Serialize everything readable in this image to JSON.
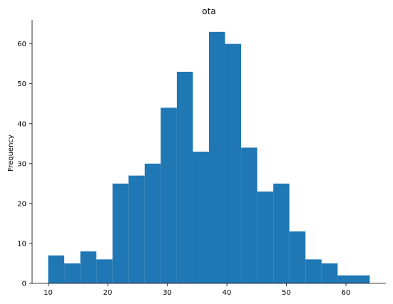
{
  "chart_data": {
    "type": "bar",
    "title": "ota",
    "xlabel": "",
    "ylabel": "Frequency",
    "bar_color": "#1f77b4",
    "bins": [
      {
        "x0": 10.0,
        "x1": 12.7,
        "count": 7
      },
      {
        "x0": 12.7,
        "x1": 15.4,
        "count": 5
      },
      {
        "x0": 15.4,
        "x1": 18.1,
        "count": 8
      },
      {
        "x0": 18.1,
        "x1": 20.8,
        "count": 6
      },
      {
        "x0": 20.8,
        "x1": 23.5,
        "count": 25
      },
      {
        "x0": 23.5,
        "x1": 26.2,
        "count": 27
      },
      {
        "x0": 26.2,
        "x1": 28.9,
        "count": 30
      },
      {
        "x0": 28.9,
        "x1": 31.6,
        "count": 44
      },
      {
        "x0": 31.6,
        "x1": 34.3,
        "count": 53
      },
      {
        "x0": 34.3,
        "x1": 37.0,
        "count": 33
      },
      {
        "x0": 37.0,
        "x1": 39.7,
        "count": 63
      },
      {
        "x0": 39.7,
        "x1": 42.4,
        "count": 60
      },
      {
        "x0": 42.4,
        "x1": 45.1,
        "count": 34
      },
      {
        "x0": 45.1,
        "x1": 47.8,
        "count": 23
      },
      {
        "x0": 47.8,
        "x1": 50.5,
        "count": 25
      },
      {
        "x0": 50.5,
        "x1": 53.2,
        "count": 13
      },
      {
        "x0": 53.2,
        "x1": 55.9,
        "count": 6
      },
      {
        "x0": 55.9,
        "x1": 58.6,
        "count": 5
      },
      {
        "x0": 58.6,
        "x1": 61.3,
        "count": 2
      },
      {
        "x0": 61.3,
        "x1": 64.0,
        "count": 2
      }
    ],
    "xlim": [
      7.3,
      66.7
    ],
    "ylim": [
      0,
      66
    ],
    "xticks": [
      10,
      20,
      30,
      40,
      50,
      60
    ],
    "yticks": [
      0,
      10,
      20,
      30,
      40,
      50,
      60
    ],
    "grid": false,
    "spines": {
      "top": false,
      "right": false
    }
  }
}
